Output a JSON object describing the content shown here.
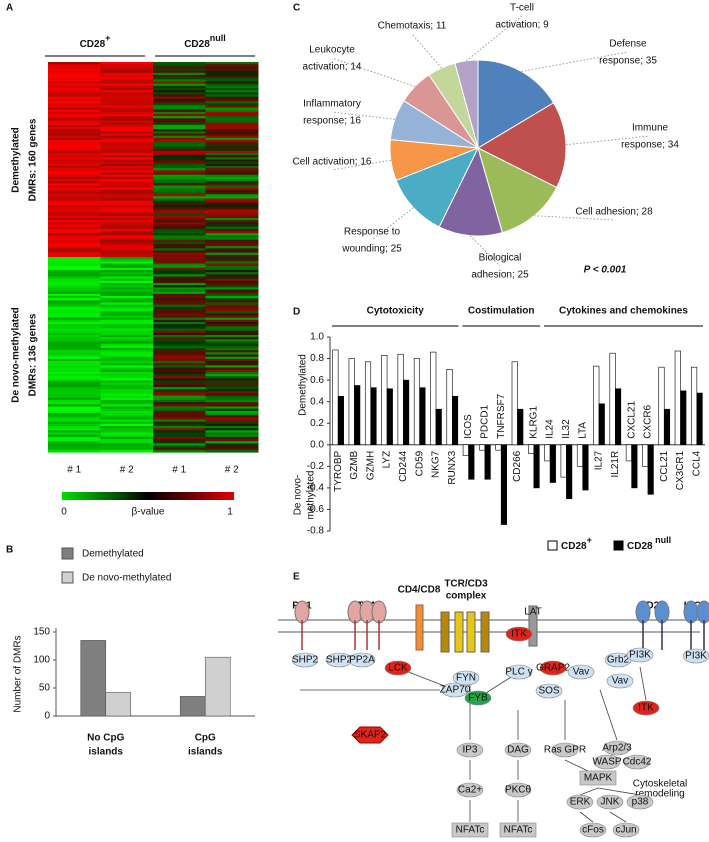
{
  "panel_labels": [
    "A",
    "B",
    "C",
    "D",
    "E"
  ],
  "heatmap": {
    "column_groups": [
      {
        "text": "CD28",
        "sup": "+"
      },
      {
        "text": "CD28",
        "sup": "null"
      }
    ],
    "row_groups": [
      [
        "Demethylated",
        "DMRs: 160 genes"
      ],
      [
        "De novo-methylated",
        "DMRs: 136 genes"
      ]
    ],
    "columns": [
      "# 1",
      "# 2",
      "# 1",
      "# 2"
    ],
    "colorbar": {
      "min_label": "0",
      "title": "β-value",
      "max_label": "1"
    }
  },
  "chart_data": [
    {
      "type": "bar",
      "ylabel": "Number of DMRs",
      "categories": [
        [
          "No CpG",
          "islands"
        ],
        [
          "CpG",
          "islands"
        ]
      ],
      "series": [
        {
          "name": "Demethylated",
          "color": "#7f7f7f",
          "values": [
            135,
            35
          ]
        },
        {
          "name": "De novo-methylated",
          "color": "#d0d0d0",
          "values": [
            42,
            105
          ]
        }
      ],
      "ylim": [
        0,
        150
      ],
      "yticks": [
        0,
        50,
        100,
        150
      ],
      "legend": "top-left"
    },
    {
      "type": "pie",
      "labels": [
        [
          "Defense",
          "response; 35"
        ],
        [
          "Immune",
          "response; 34"
        ],
        [
          "Cell adhesion; 28"
        ],
        [
          "Biological",
          "adhesion; 25"
        ],
        [
          "Response to",
          "wounding; 25"
        ],
        [
          "Cell activation; 16"
        ],
        [
          "Inflammatory",
          "response; 16"
        ],
        [
          "Leukocyte",
          "activation; 14"
        ],
        [
          "Chemotaxis; 11"
        ],
        [
          "T-cell",
          "activation; 9"
        ]
      ],
      "values": [
        35,
        34,
        28,
        25,
        25,
        16,
        16,
        14,
        11,
        9
      ],
      "colors": [
        "#4f81bd",
        "#c0504d",
        "#9bbb59",
        "#8064a2",
        "#4bacc6",
        "#f79646",
        "#95b3d7",
        "#d99694",
        "#c3d69b",
        "#b3a2c7"
      ],
      "annotation": "P < 0.001"
    },
    {
      "type": "bar",
      "group_labels": [
        "Cytotoxicity",
        "Costimulation",
        "Cytokines and chemokines"
      ],
      "ylabels": {
        "positive": [
          "Demethylated"
        ],
        "negative": [
          "De novo-",
          "methylated"
        ]
      },
      "categories": [
        "TYROBP",
        "GZMB",
        "GZMH",
        "LYZ",
        "CD244",
        "CD59",
        "NKG7",
        "RUNX3",
        "ICOS",
        "PDCD1",
        "TNFRSF7",
        "CD266",
        "KLRG1",
        "IL24",
        "IL32",
        "LTA",
        "IL27",
        "IL21R",
        "CXCL21",
        "CXCR6",
        "CCL21",
        "CX3CR1",
        "CCL4"
      ],
      "series": [
        {
          "name": "CD28",
          "sup": "+",
          "color": "#ffffff",
          "values": [
            0.88,
            0.8,
            0.77,
            0.83,
            0.84,
            0.8,
            0.86,
            0.7,
            -0.1,
            -0.05,
            -0.05,
            0.77,
            -0.08,
            -0.15,
            -0.3,
            -0.2,
            0.73,
            0.85,
            -0.15,
            -0.2,
            0.72,
            0.87,
            0.72
          ]
        },
        {
          "name": "CD28",
          "sup": " null",
          "color": "#000000",
          "values": [
            0.45,
            0.55,
            0.53,
            0.52,
            0.6,
            0.53,
            0.33,
            0.45,
            -0.32,
            -0.32,
            -0.74,
            0.33,
            -0.4,
            -0.35,
            -0.5,
            -0.42,
            0.38,
            0.52,
            -0.4,
            -0.46,
            0.33,
            0.5,
            0.48
          ]
        }
      ],
      "ylim": [
        -0.8,
        1.0
      ],
      "yticks": [
        -0.8,
        -0.6,
        -0.4,
        -0.2,
        {
          "value": 0,
          "label": "0.0"
        },
        0.2,
        0.4,
        0.6,
        0.8,
        {
          "value": 1,
          "label": "1.0"
        }
      ],
      "legend": "bottom-right"
    }
  ],
  "diagram": {
    "receptors": [
      [
        "PD1"
      ],
      [
        "CTLA4"
      ],
      [
        "CD4/CD8"
      ],
      [
        "TCR/CD3",
        "complex"
      ],
      [
        "CD28"
      ],
      [
        "ICOS"
      ]
    ],
    "nodes": [
      "SHP2",
      "SHP2",
      "PP2A",
      "LCK",
      "ZAP70",
      "FYN",
      "FYB",
      "PLC γ",
      "ITK",
      "LAT",
      "GRAP2",
      "Vav",
      "SOS",
      "SKAP2",
      "Grb2",
      "PI3K",
      "Vav",
      "PI3K",
      "ITK",
      "IP3",
      "DAG",
      "Ras GPR",
      "Arp2/3",
      "WASP",
      "Cdc42",
      "Cytoskeletal",
      "remodeling",
      "MAPK",
      "ERK",
      "JNK",
      "p38",
      "Ca2+",
      "PKCθ",
      "cFos",
      "cJun",
      "NFATc",
      "NFATc"
    ]
  }
}
